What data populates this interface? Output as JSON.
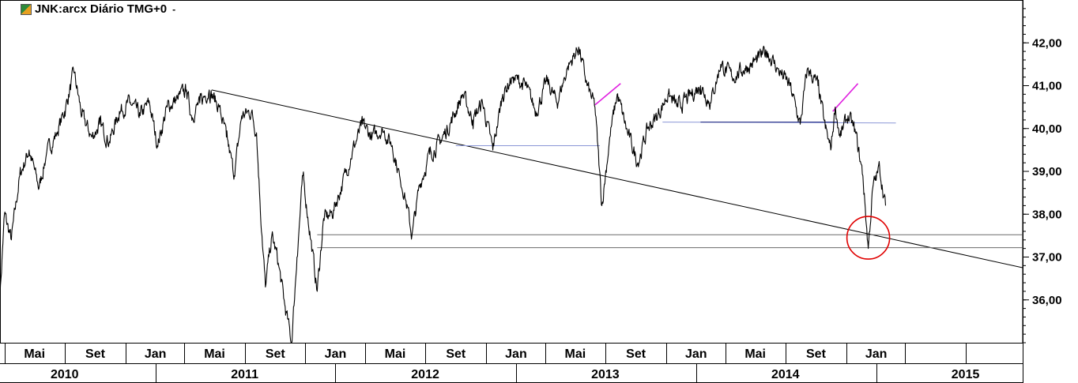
{
  "header": {
    "title": "JNK:arcx Diário TMG+0",
    "caret": "-"
  },
  "chart_data": {
    "type": "line",
    "title": "JNK:arcx Diário TMG+0",
    "xlabel": "",
    "ylabel": "",
    "ylim": [
      35.0,
      43.0
    ],
    "y_ticks": [
      "36,00",
      "37,00",
      "38,00",
      "39,00",
      "40,00",
      "41,00",
      "42,00"
    ],
    "y_tick_values": [
      36,
      37,
      38,
      39,
      40,
      41,
      42
    ],
    "month_labels": [
      {
        "label": "Mai",
        "date": "2010-05-01"
      },
      {
        "label": "Set",
        "date": "2010-09-01"
      },
      {
        "label": "Jan",
        "date": "2011-01-01"
      },
      {
        "label": "Mai",
        "date": "2011-05-01"
      },
      {
        "label": "Set",
        "date": "2011-09-01"
      },
      {
        "label": "Jan",
        "date": "2012-01-01"
      },
      {
        "label": "Mai",
        "date": "2012-05-01"
      },
      {
        "label": "Set",
        "date": "2012-09-01"
      },
      {
        "label": "Jan",
        "date": "2013-01-01"
      },
      {
        "label": "Mai",
        "date": "2013-05-01"
      },
      {
        "label": "Set",
        "date": "2013-09-01"
      },
      {
        "label": "Jan",
        "date": "2014-01-01"
      },
      {
        "label": "Mai",
        "date": "2014-05-01"
      },
      {
        "label": "Set",
        "date": "2014-09-01"
      },
      {
        "label": "Jan",
        "date": "2015-01-01"
      }
    ],
    "year_labels": [
      {
        "label": "2010",
        "date": "2010-07-01"
      },
      {
        "label": "2011",
        "date": "2011-07-01"
      },
      {
        "label": "2012",
        "date": "2012-07-01"
      },
      {
        "label": "2013",
        "date": "2013-07-01"
      },
      {
        "label": "2014",
        "date": "2014-07-01"
      },
      {
        "label": "2015",
        "date": "2015-07-01"
      }
    ],
    "x_range": [
      "2010-02-20",
      "2015-10-25"
    ],
    "series": [
      {
        "color": "#000000",
        "points": [
          [
            "2010-02-20",
            36.1
          ],
          [
            "2010-03-01",
            38.0
          ],
          [
            "2010-03-15",
            37.4
          ],
          [
            "2010-04-01",
            38.9
          ],
          [
            "2010-04-20",
            39.5
          ],
          [
            "2010-05-10",
            38.6
          ],
          [
            "2010-05-25",
            39.4
          ],
          [
            "2010-06-15",
            39.9
          ],
          [
            "2010-07-01",
            40.4
          ],
          [
            "2010-07-20",
            41.3
          ],
          [
            "2010-08-05",
            40.3
          ],
          [
            "2010-08-25",
            39.8
          ],
          [
            "2010-09-10",
            40.1
          ],
          [
            "2010-09-30",
            39.7
          ],
          [
            "2010-10-20",
            40.4
          ],
          [
            "2010-11-10",
            40.6
          ],
          [
            "2010-12-01",
            40.3
          ],
          [
            "2010-12-20",
            40.6
          ],
          [
            "2011-01-05",
            39.6
          ],
          [
            "2011-01-25",
            40.5
          ],
          [
            "2011-02-15",
            40.7
          ],
          [
            "2011-03-05",
            40.9
          ],
          [
            "2011-03-15",
            40.3
          ],
          [
            "2011-04-01",
            40.6
          ],
          [
            "2011-04-20",
            40.9
          ],
          [
            "2011-05-10",
            40.5
          ],
          [
            "2011-05-25",
            39.8
          ],
          [
            "2011-06-10",
            38.9
          ],
          [
            "2011-06-25",
            40.3
          ],
          [
            "2011-07-15",
            40.4
          ],
          [
            "2011-07-25",
            39.9
          ],
          [
            "2011-08-05",
            37.5
          ],
          [
            "2011-08-12",
            36.3
          ],
          [
            "2011-08-25",
            37.5
          ],
          [
            "2011-09-05",
            37.0
          ],
          [
            "2011-09-20",
            35.9
          ],
          [
            "2011-10-04",
            35.0
          ],
          [
            "2011-10-15",
            37.0
          ],
          [
            "2011-10-27",
            38.9
          ],
          [
            "2011-11-10",
            37.6
          ],
          [
            "2011-11-25",
            36.2
          ],
          [
            "2011-12-08",
            37.9
          ],
          [
            "2011-12-25",
            38.0
          ],
          [
            "2012-01-15",
            38.7
          ],
          [
            "2012-02-05",
            39.5
          ],
          [
            "2012-02-25",
            40.1
          ],
          [
            "2012-03-15",
            39.8
          ],
          [
            "2012-04-05",
            40.0
          ],
          [
            "2012-04-25",
            39.6
          ],
          [
            "2012-05-10",
            38.9
          ],
          [
            "2012-05-20",
            38.5
          ],
          [
            "2012-06-04",
            37.5
          ],
          [
            "2012-06-20",
            38.7
          ],
          [
            "2012-07-10",
            39.4
          ],
          [
            "2012-08-01",
            39.7
          ],
          [
            "2012-08-20",
            40.1
          ],
          [
            "2012-09-15",
            40.8
          ],
          [
            "2012-10-05",
            40.2
          ],
          [
            "2012-10-25",
            40.6
          ],
          [
            "2012-11-15",
            39.5
          ],
          [
            "2012-12-05",
            40.8
          ],
          [
            "2012-12-25",
            41.2
          ],
          [
            "2013-01-20",
            41.0
          ],
          [
            "2013-02-10",
            40.4
          ],
          [
            "2013-03-05",
            41.1
          ],
          [
            "2013-03-25",
            40.6
          ],
          [
            "2013-04-15",
            41.4
          ],
          [
            "2013-05-08",
            41.9
          ],
          [
            "2013-05-25",
            41.0
          ],
          [
            "2013-06-10",
            40.5
          ],
          [
            "2013-06-24",
            38.2
          ],
          [
            "2013-07-10",
            39.8
          ],
          [
            "2013-07-25",
            40.8
          ],
          [
            "2013-08-15",
            39.9
          ],
          [
            "2013-09-05",
            39.2
          ],
          [
            "2013-09-25",
            40.0
          ],
          [
            "2013-10-15",
            40.3
          ],
          [
            "2013-11-05",
            40.8
          ],
          [
            "2013-11-25",
            40.5
          ],
          [
            "2013-12-15",
            40.7
          ],
          [
            "2014-01-10",
            41.0
          ],
          [
            "2014-01-30",
            40.6
          ],
          [
            "2014-02-20",
            41.5
          ],
          [
            "2014-03-15",
            41.2
          ],
          [
            "2014-04-10",
            41.4
          ],
          [
            "2014-05-05",
            41.6
          ],
          [
            "2014-05-25",
            41.8
          ],
          [
            "2014-06-15",
            41.4
          ],
          [
            "2014-07-10",
            41.0
          ],
          [
            "2014-07-31",
            40.1
          ],
          [
            "2014-08-15",
            41.4
          ],
          [
            "2014-09-05",
            41.0
          ],
          [
            "2014-09-20",
            40.0
          ],
          [
            "2014-10-01",
            39.5
          ],
          [
            "2014-10-10",
            40.5
          ],
          [
            "2014-10-20",
            39.8
          ],
          [
            "2014-11-05",
            40.3
          ],
          [
            "2014-11-20",
            39.9
          ],
          [
            "2014-12-05",
            38.9
          ],
          [
            "2014-12-16",
            37.2
          ],
          [
            "2014-12-25",
            38.6
          ],
          [
            "2015-01-08",
            39.1
          ],
          [
            "2015-01-20",
            38.2
          ]
        ]
      }
    ],
    "trendlines": [
      {
        "color": "#000000",
        "from": [
          "2011-04-25",
          40.9
        ],
        "to": [
          "2015-10-25",
          36.75
        ]
      },
      {
        "color": "#6a6a6a",
        "from": [
          "2011-11-25",
          37.52
        ],
        "to": [
          "2015-10-25",
          37.52
        ]
      },
      {
        "color": "#6a6a6a",
        "from": [
          "2011-11-25",
          37.22
        ],
        "to": [
          "2015-10-25",
          37.22
        ]
      },
      {
        "color": "#8a96d6",
        "from": [
          "2012-09-01",
          39.6
        ],
        "to": [
          "2013-06-20",
          39.6
        ]
      },
      {
        "color": "#8a96d6",
        "from": [
          "2013-10-25",
          40.15
        ],
        "to": [
          "2015-02-10",
          40.13
        ]
      },
      {
        "color": "#1a237e",
        "from": [
          "2014-01-10",
          40.15
        ],
        "to": [
          "2014-10-15",
          40.15
        ]
      },
      {
        "color": "#e020e0",
        "from": [
          "2013-06-10",
          40.55
        ],
        "to": [
          "2013-08-01",
          41.05
        ]
      },
      {
        "color": "#e020e0",
        "from": [
          "2014-10-05",
          40.4
        ],
        "to": [
          "2014-11-25",
          41.05
        ]
      }
    ],
    "highlight_circle": {
      "color": "#e00000",
      "date": "2014-12-16",
      "value": 37.45
    }
  }
}
